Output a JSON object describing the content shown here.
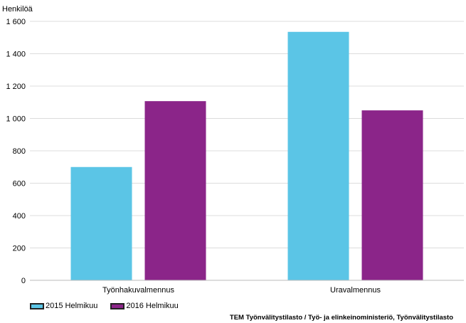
{
  "chart_data": {
    "type": "bar",
    "ylabel": "Henkilöä",
    "categories": [
      "Työnhakuvalmennus",
      "Uravalmennus"
    ],
    "series": [
      {
        "name": "2015 Helmikuu",
        "color": "#5bc5e6",
        "values": [
          700,
          1535
        ]
      },
      {
        "name": "2016 Helmikuu",
        "color": "#8b2589",
        "values": [
          1107,
          1050
        ]
      }
    ],
    "ylim": [
      0,
      1600
    ],
    "yticks": [
      0,
      200,
      400,
      600,
      800,
      1000,
      1200,
      1400,
      1600
    ],
    "ytick_labels": [
      "0",
      "200",
      "400",
      "600",
      "800",
      "1 000",
      "1 200",
      "1 400",
      "1 600"
    ],
    "grid": true,
    "legend_position": "bottom-left"
  },
  "source": "TEM Työnvälitystilasto / Työ- ja elinkeinoministeriö, Työnvälitystilasto"
}
